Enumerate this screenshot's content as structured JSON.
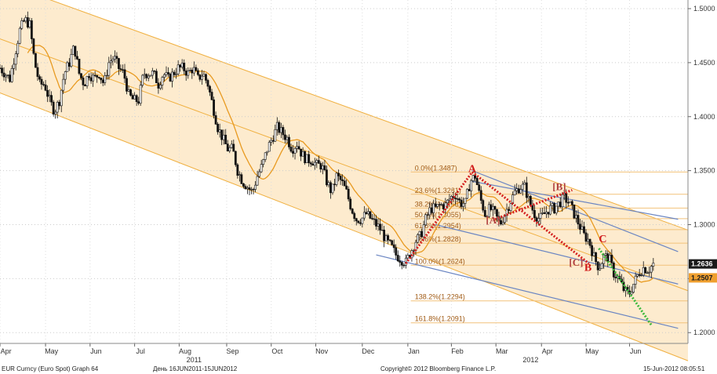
{
  "chart_data": {
    "type": "candlestick",
    "title": "EUR Curncy (Euro Spot) Graph 64",
    "period_text": "День 16JUN2011-15JUN2012",
    "copyright": "Copyright© 2012 Bloomberg Finance L.P.",
    "timestamp": "15-Jun-2012 08:05:51",
    "ylim": [
      1.19,
      1.508
    ],
    "y_ticks": [
      {
        "v": 1.5,
        "label": "1.5000"
      },
      {
        "v": 1.45,
        "label": "1.4500"
      },
      {
        "v": 1.4,
        "label": "1.4000"
      },
      {
        "v": 1.35,
        "label": "1.3500"
      },
      {
        "v": 1.3,
        "label": "1.3000"
      },
      {
        "v": 1.25,
        "label": "1.2500"
      },
      {
        "v": 1.2,
        "label": "1.2000"
      }
    ],
    "x_months": [
      {
        "label": "Apr",
        "t": 0.6
      },
      {
        "label": "May",
        "t": 5.2
      },
      {
        "label": "Jun",
        "t": 9.7
      },
      {
        "label": "Jul",
        "t": 14.2
      },
      {
        "label": "Aug",
        "t": 18.7
      },
      {
        "label": "Sep",
        "t": 23.5
      },
      {
        "label": "Oct",
        "t": 28.0
      },
      {
        "label": "Nov",
        "t": 32.5
      },
      {
        "label": "Dec",
        "t": 37.2
      },
      {
        "label": "Jan",
        "t": 41.8
      },
      {
        "label": "Feb",
        "t": 46.2
      },
      {
        "label": "Mar",
        "t": 50.7
      },
      {
        "label": "Apr",
        "t": 55.3
      },
      {
        "label": "May",
        "t": 59.8
      },
      {
        "label": "Jun",
        "t": 64.2
      }
    ],
    "x_years": [
      {
        "label": "2011",
        "t": 19.6
      },
      {
        "label": "2012",
        "t": 53.6
      }
    ],
    "close_series": [
      [
        0,
        1.445
      ],
      [
        1,
        1.435
      ],
      [
        2,
        1.48
      ],
      [
        2.5,
        1.49
      ],
      [
        3,
        1.485
      ],
      [
        3.5,
        1.45
      ],
      [
        4,
        1.43
      ],
      [
        4.5,
        1.43
      ],
      [
        5,
        1.415
      ],
      [
        5.5,
        1.405
      ],
      [
        6,
        1.415
      ],
      [
        6.5,
        1.44
      ],
      [
        7,
        1.45
      ],
      [
        7.5,
        1.465
      ],
      [
        8,
        1.44
      ],
      [
        8.5,
        1.43
      ],
      [
        9,
        1.44
      ],
      [
        9.5,
        1.435
      ],
      [
        10,
        1.44
      ],
      [
        10.5,
        1.43
      ],
      [
        11,
        1.45
      ],
      [
        11.5,
        1.455
      ],
      [
        12,
        1.445
      ],
      [
        12.5,
        1.44
      ],
      [
        13,
        1.42
      ],
      [
        13.5,
        1.415
      ],
      [
        14,
        1.415
      ],
      [
        14.5,
        1.44
      ],
      [
        15,
        1.44
      ],
      [
        15.5,
        1.44
      ],
      [
        16,
        1.43
      ],
      [
        16.5,
        1.44
      ],
      [
        17,
        1.435
      ],
      [
        17.5,
        1.44
      ],
      [
        18,
        1.445
      ],
      [
        18.5,
        1.445
      ],
      [
        19,
        1.44
      ],
      [
        19.5,
        1.445
      ],
      [
        20,
        1.435
      ],
      [
        20.5,
        1.44
      ],
      [
        21,
        1.43
      ],
      [
        21.5,
        1.41
      ],
      [
        22,
        1.39
      ],
      [
        22.5,
        1.38
      ],
      [
        23,
        1.37
      ],
      [
        23.5,
        1.37
      ],
      [
        24,
        1.35
      ],
      [
        24.5,
        1.34
      ],
      [
        25,
        1.335
      ],
      [
        25.5,
        1.33
      ],
      [
        26,
        1.345
      ],
      [
        26.5,
        1.355
      ],
      [
        27,
        1.37
      ],
      [
        27.5,
        1.38
      ],
      [
        28,
        1.39
      ],
      [
        28.5,
        1.385
      ],
      [
        29,
        1.38
      ],
      [
        29.5,
        1.37
      ],
      [
        30,
        1.375
      ],
      [
        30.5,
        1.365
      ],
      [
        31,
        1.36
      ],
      [
        31.5,
        1.36
      ],
      [
        32,
        1.355
      ],
      [
        32.5,
        1.355
      ],
      [
        33,
        1.34
      ],
      [
        33.5,
        1.33
      ],
      [
        34,
        1.345
      ],
      [
        34.5,
        1.34
      ],
      [
        35,
        1.33
      ],
      [
        35.5,
        1.315
      ],
      [
        36,
        1.305
      ],
      [
        36.5,
        1.305
      ],
      [
        37,
        1.31
      ],
      [
        37.5,
        1.305
      ],
      [
        38,
        1.3
      ],
      [
        38.5,
        1.295
      ],
      [
        39,
        1.285
      ],
      [
        39.5,
        1.28
      ],
      [
        40,
        1.272
      ],
      [
        40.5,
        1.268
      ],
      [
        41,
        1.265
      ],
      [
        41.5,
        1.275
      ],
      [
        42,
        1.285
      ],
      [
        42.5,
        1.29
      ],
      [
        43,
        1.305
      ],
      [
        43.5,
        1.315
      ],
      [
        44,
        1.315
      ],
      [
        44.5,
        1.318
      ],
      [
        45,
        1.318
      ],
      [
        45.5,
        1.325
      ],
      [
        46,
        1.328
      ],
      [
        46.5,
        1.32
      ],
      [
        47,
        1.32
      ],
      [
        47.5,
        1.34
      ],
      [
        48,
        1.345
      ],
      [
        48.5,
        1.325
      ],
      [
        49,
        1.31
      ],
      [
        49.5,
        1.315
      ],
      [
        50,
        1.31
      ],
      [
        50.5,
        1.3
      ],
      [
        51,
        1.31
      ],
      [
        51.5,
        1.32
      ],
      [
        52,
        1.33
      ],
      [
        52.5,
        1.335
      ],
      [
        53,
        1.335
      ],
      [
        53.5,
        1.32
      ],
      [
        54,
        1.31
      ],
      [
        54.5,
        1.305
      ],
      [
        55,
        1.31
      ],
      [
        55.5,
        1.315
      ],
      [
        56,
        1.315
      ],
      [
        56.5,
        1.32
      ],
      [
        57,
        1.325
      ],
      [
        57.5,
        1.32
      ],
      [
        58,
        1.31
      ],
      [
        58.5,
        1.3
      ],
      [
        59,
        1.29
      ],
      [
        59.5,
        1.285
      ],
      [
        60,
        1.27
      ],
      [
        60.5,
        1.26
      ],
      [
        61,
        1.27
      ],
      [
        61.5,
        1.27
      ],
      [
        62,
        1.255
      ],
      [
        62.5,
        1.25
      ],
      [
        63,
        1.24
      ],
      [
        63.5,
        1.235
      ],
      [
        64,
        1.245
      ],
      [
        64.5,
        1.255
      ],
      [
        65,
        1.26
      ],
      [
        65.5,
        1.258
      ],
      [
        66,
        1.2636
      ]
    ],
    "last_price": {
      "label": "1.2636",
      "value": 1.2636
    },
    "ma_price": {
      "label": "1.2507",
      "value": 1.2507
    },
    "fib_levels": [
      {
        "label": "0.0%(1.3487)",
        "value": 1.3487
      },
      {
        "label": "23.6%(1.3281)",
        "value": 1.3281
      },
      {
        "label": "38.2%(1.3153)",
        "value": 1.3153
      },
      {
        "label": "50.0%(1.3055)",
        "value": 1.3055
      },
      {
        "label": "61.8%(1.2954)",
        "value": 1.2954
      },
      {
        "label": "78.6%(1.2828)",
        "value": 1.2828
      },
      {
        "label": "100.0%(1.2624)",
        "value": 1.2624
      },
      {
        "label": "138.2%(1.2294)",
        "value": 1.2294
      },
      {
        "label": "161.8%(1.2091)",
        "value": 1.2091
      }
    ],
    "wave_labels": [
      {
        "label": "A",
        "t": 47.7,
        "v": 1.3487,
        "style": "main"
      },
      {
        "label": "[A]",
        "t": 49.8,
        "v": 1.3012,
        "style": "bracket"
      },
      {
        "label": "[B]",
        "t": 56.5,
        "v": 1.332,
        "style": "bracket"
      },
      {
        "label": "C",
        "t": 60.9,
        "v": 1.2835,
        "style": "main"
      },
      {
        "label": "[C]",
        "t": 58.2,
        "v": 1.262,
        "style": "bracket"
      },
      {
        "label": "B",
        "t": 59.4,
        "v": 1.257,
        "style": "main"
      }
    ],
    "channel": {
      "upper": [
        [
          3.0,
          1.515
        ],
        [
          58.0,
          1.333
        ]
      ],
      "lower": [
        [
          0.0,
          1.422
        ],
        [
          58.0,
          1.215
        ]
      ],
      "lines": [
        {
          "from": [
            0.0,
            1.422
          ],
          "to": [
            58.0,
            1.215
          ]
        },
        {
          "from": [
            3.0,
            1.515
          ],
          "to": [
            58.0,
            1.333
          ]
        },
        {
          "from": [
            0.0,
            1.472
          ],
          "to": [
            62.0,
            1.264
          ]
        }
      ]
    },
    "blue_channel": [
      {
        "from": [
          38.0,
          1.272
        ],
        "to": [
          68.5,
          1.204
        ]
      },
      {
        "from": [
          47.7,
          1.35
        ],
        "to": [
          68.5,
          1.275
        ]
      },
      {
        "from": [
          47.7,
          1.34
        ],
        "to": [
          68.5,
          1.305
        ]
      },
      {
        "from": [
          44.0,
          1.3
        ],
        "to": [
          68.5,
          1.245
        ]
      }
    ],
    "red_dotted": [
      {
        "from": [
          41.0,
          1.264
        ],
        "to": [
          47.7,
          1.3487
        ]
      },
      {
        "from": [
          47.7,
          1.3487
        ],
        "to": [
          59.5,
          1.264
        ]
      },
      {
        "from": [
          50.0,
          1.305
        ],
        "to": [
          57.8,
          1.332
        ]
      }
    ],
    "green_dotted": [
      {
        "from": [
          60.5,
          1.278
        ],
        "to": [
          65.8,
          1.207
        ]
      }
    ]
  }
}
